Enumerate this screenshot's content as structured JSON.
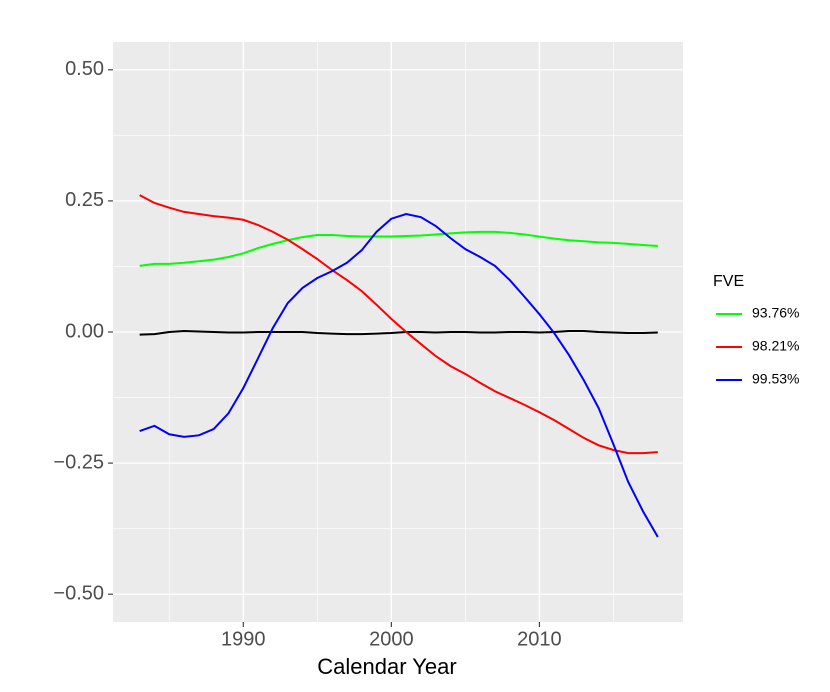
{
  "chart_data": {
    "type": "line",
    "x_label": "Calendar Year",
    "legend_title": "FVE",
    "x": [
      1983,
      1984,
      1985,
      1986,
      1987,
      1988,
      1989,
      1990,
      1991,
      1992,
      1993,
      1994,
      1995,
      1996,
      1997,
      1998,
      1999,
      2000,
      2001,
      2002,
      2003,
      2004,
      2005,
      2006,
      2007,
      2008,
      2009,
      2010,
      2011,
      2012,
      2013,
      2014,
      2015,
      2016,
      2017,
      2018
    ],
    "series": [
      {
        "color": "#000000",
        "values": [
          -0.005,
          -0.004,
          0.0,
          0.002,
          0.001,
          0.0,
          -0.001,
          -0.001,
          0.0,
          0.0,
          0.0,
          0.0,
          -0.002,
          -0.003,
          -0.004,
          -0.004,
          -0.003,
          -0.002,
          0.0,
          0.0,
          -0.001,
          0.0,
          0.0,
          -0.001,
          -0.001,
          0.0,
          0.0,
          -0.001,
          0.0,
          0.002,
          0.002,
          0.0,
          -0.001,
          -0.002,
          -0.002,
          -0.001
        ]
      },
      {
        "name": "93.76%",
        "color": "#00ff00",
        "values": [
          0.126,
          0.13,
          0.13,
          0.132,
          0.135,
          0.138,
          0.143,
          0.15,
          0.16,
          0.168,
          0.175,
          0.181,
          0.185,
          0.185,
          0.183,
          0.182,
          0.182,
          0.182,
          0.183,
          0.184,
          0.186,
          0.188,
          0.19,
          0.191,
          0.191,
          0.189,
          0.186,
          0.182,
          0.178,
          0.175,
          0.173,
          0.171,
          0.17,
          0.168,
          0.166,
          0.164
        ]
      },
      {
        "name": "98.21%",
        "color": "#ff0000",
        "values": [
          0.261,
          0.246,
          0.237,
          0.229,
          0.225,
          0.221,
          0.218,
          0.214,
          0.204,
          0.191,
          0.176,
          0.158,
          0.139,
          0.118,
          0.099,
          0.078,
          0.052,
          0.025,
          0,
          -0.023,
          -0.046,
          -0.065,
          -0.08,
          -0.097,
          -0.113,
          -0.126,
          -0.139,
          -0.153,
          -0.168,
          -0.185,
          -0.202,
          -0.216,
          -0.225,
          -0.231,
          -0.231,
          -0.229
        ]
      },
      {
        "name": "99.53%",
        "color": "#0000ff",
        "values": [
          -0.189,
          -0.179,
          -0.195,
          -0.2,
          -0.197,
          -0.185,
          -0.155,
          -0.107,
          -0.05,
          0.008,
          0.055,
          0.084,
          0.103,
          0.116,
          0.132,
          0.156,
          0.191,
          0.216,
          0.225,
          0.219,
          0.202,
          0.179,
          0.158,
          0.143,
          0.126,
          0.099,
          0.067,
          0.034,
          -0.002,
          -0.044,
          -0.092,
          -0.145,
          -0.214,
          -0.286,
          -0.342,
          -0.391
        ]
      }
    ],
    "xlim": [
      1981.2,
      2019.7
    ],
    "ylim": [
      -0.553,
      0.553
    ],
    "xticks": [
      1990,
      2000,
      2010
    ],
    "yticks": [
      {
        "value": -0.5,
        "label": "−0.50"
      },
      {
        "value": -0.25,
        "label": "−0.25"
      },
      {
        "value": 0,
        "label": "0.00"
      },
      {
        "value": 0.25,
        "label": "0.25"
      },
      {
        "value": 0.5,
        "label": "0.50"
      }
    ],
    "x_minor_grid": [
      1985,
      1995,
      2005,
      2015
    ],
    "y_minor_grid": [
      -0.375,
      -0.125,
      0.125,
      0.375
    ],
    "grid": true,
    "legend_position": "right"
  }
}
